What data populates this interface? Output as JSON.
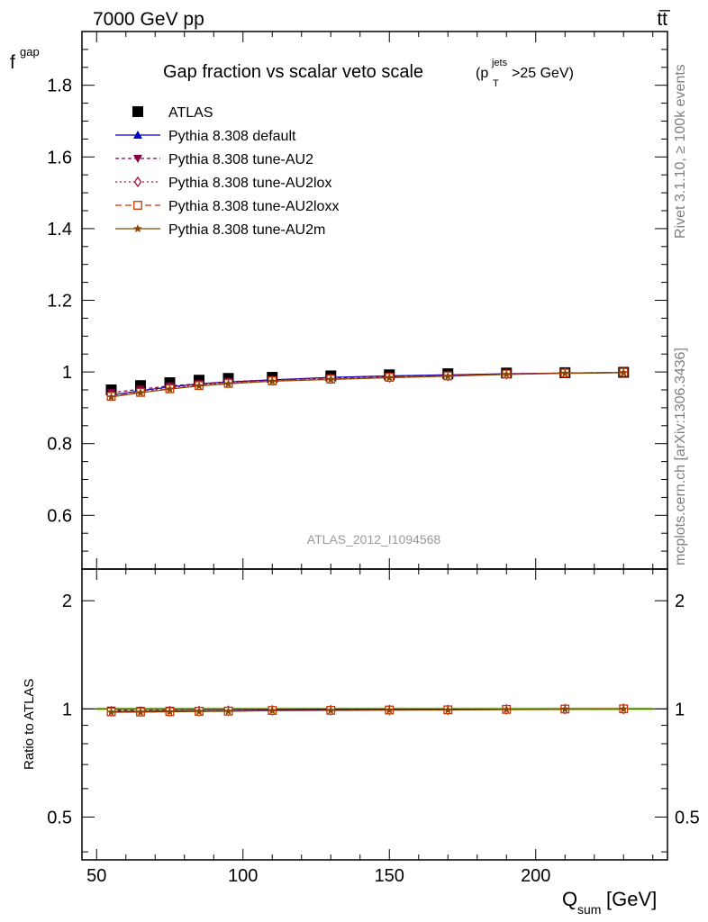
{
  "header": {
    "energy_label": "7000 GeV pp",
    "process_label": "tt̅"
  },
  "side_labels": {
    "rivet": "Rivet 3.1.10, ≥ 100k events",
    "source": "mcplots.cern.ch [arXiv:1306.3436]"
  },
  "chart_data": {
    "type": "line",
    "title": "Gap fraction vs scalar veto scale",
    "title_suffix": {
      "open": "(p",
      "sup": "jets",
      "sub": "T",
      "close": ">25 GeV)"
    },
    "analysis_id": "ATLAS_2012_I1094568",
    "xlabel": {
      "main": "Q",
      "sub": "sum",
      "unit": " [GeV]"
    },
    "ylabel": {
      "main": "f",
      "sub": "gap"
    },
    "ratio_ylabel": "Ratio to ATLAS",
    "xlim": [
      45,
      245
    ],
    "ylim": [
      0.45,
      1.95
    ],
    "ratio_ylim": [
      0.38,
      2.45
    ],
    "ratio_log": true,
    "x_ticks": [
      50,
      100,
      150,
      200
    ],
    "x_tick_labels": [
      "50",
      "100",
      "150",
      "200"
    ],
    "y_ticks": [
      0.6,
      0.8,
      1.0,
      1.2,
      1.4,
      1.6,
      1.8
    ],
    "y_tick_labels": [
      "0.6",
      "0.8",
      "1",
      "1.2",
      "1.4",
      "1.6",
      "1.8"
    ],
    "ratio_ticks": [
      0.5,
      1,
      2
    ],
    "ratio_tick_labels": [
      "0.5",
      "1",
      "2"
    ],
    "legend_position": "top-left",
    "x": [
      55,
      65,
      75,
      85,
      95,
      110,
      130,
      150,
      170,
      190,
      210,
      230
    ],
    "series": [
      {
        "name": "ATLAS",
        "color": "#000000",
        "marker": "square",
        "dash": "none",
        "values": [
          0.95,
          0.962,
          0.97,
          0.977,
          0.982,
          0.985,
          0.989,
          0.992,
          0.995,
          0.997,
          0.998,
          0.999
        ]
      },
      {
        "name": "Pythia 8.308 default",
        "color": "#0000cc",
        "marker": "triangle-up",
        "dash": "none",
        "values": [
          0.935,
          0.948,
          0.958,
          0.967,
          0.972,
          0.978,
          0.985,
          0.989,
          0.992,
          0.995,
          0.997,
          0.998
        ]
      },
      {
        "name": "Pythia 8.308 tune-AU2",
        "color": "#880044",
        "marker": "triangle-down",
        "dash": "4,3",
        "values": [
          0.942,
          0.952,
          0.961,
          0.967,
          0.973,
          0.978,
          0.983,
          0.987,
          0.991,
          0.995,
          0.997,
          0.999
        ]
      },
      {
        "name": "Pythia 8.308 tune-AU2lox",
        "color": "#aa1133",
        "marker": "diamond-open",
        "dash": "2,3",
        "values": [
          0.935,
          0.946,
          0.956,
          0.964,
          0.97,
          0.976,
          0.981,
          0.985,
          0.989,
          0.994,
          0.997,
          0.999
        ]
      },
      {
        "name": "Pythia 8.308 tune-AU2loxx",
        "color": "#cc3300",
        "marker": "square-open",
        "dash": "7,4",
        "values": [
          0.932,
          0.943,
          0.953,
          0.962,
          0.968,
          0.975,
          0.98,
          0.985,
          0.989,
          0.994,
          0.997,
          0.999
        ]
      },
      {
        "name": "Pythia 8.308 tune-AU2m",
        "color": "#884400",
        "marker": "star",
        "dash": "none",
        "values": [
          0.93,
          0.942,
          0.952,
          0.961,
          0.967,
          0.974,
          0.979,
          0.984,
          0.988,
          0.993,
          0.996,
          0.998
        ]
      }
    ]
  }
}
